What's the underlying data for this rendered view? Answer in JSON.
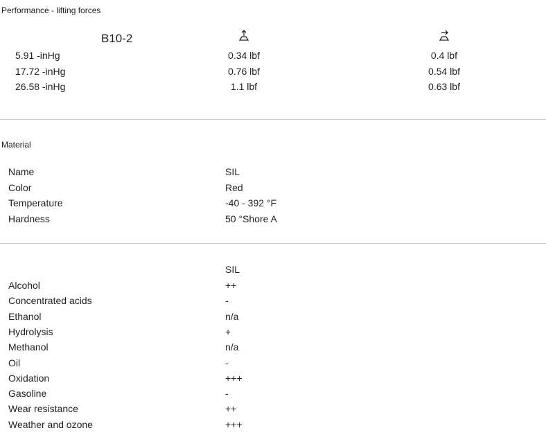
{
  "performance": {
    "title": "Performance - lifting forces",
    "model": "B10-2",
    "icons": [
      "suction-cup-vertical-force-icon",
      "suction-cup-horizontal-force-icon"
    ],
    "rows": [
      {
        "vacuum": "5.91 -inHg",
        "vertical": "0.34 lbf",
        "horizontal": "0.4 lbf"
      },
      {
        "vacuum": "17.72 -inHg",
        "vertical": "0.76 lbf",
        "horizontal": "0.54 lbf"
      },
      {
        "vacuum": "26.58 -inHg",
        "vertical": "1.1 lbf",
        "horizontal": "0.63 lbf"
      }
    ]
  },
  "material": {
    "title": "Material",
    "rows": [
      {
        "label": "Name",
        "value": "SIL"
      },
      {
        "label": "Color",
        "value": "Red"
      },
      {
        "label": "Temperature",
        "value": "-40 - 392 °F"
      },
      {
        "label": "Hardness",
        "value": "50 °Shore A"
      }
    ]
  },
  "resistance": {
    "header": "SIL",
    "rows": [
      {
        "label": "Alcohol",
        "value": "++"
      },
      {
        "label": "Concentrated acids",
        "value": "-"
      },
      {
        "label": "Ethanol",
        "value": "n/a"
      },
      {
        "label": "Hydrolysis",
        "value": "+"
      },
      {
        "label": "Methanol",
        "value": "n/a"
      },
      {
        "label": "Oil",
        "value": "-"
      },
      {
        "label": "Oxidation",
        "value": "+++"
      },
      {
        "label": "Gasoline",
        "value": "-"
      },
      {
        "label": "Wear resistance",
        "value": "++"
      },
      {
        "label": "Weather and ozone",
        "value": "+++"
      }
    ]
  }
}
